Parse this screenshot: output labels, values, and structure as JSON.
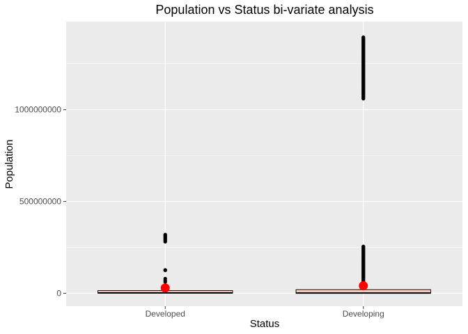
{
  "chart_data": {
    "type": "boxplot",
    "title": "Population vs Status bi-variate analysis",
    "xlabel": "Status",
    "ylabel": "Population",
    "categories": [
      "Developed",
      "Developing"
    ],
    "y_ticks": [
      {
        "value": 0,
        "label": "0"
      },
      {
        "value": 500000000,
        "label": "500000000"
      },
      {
        "value": 1000000000,
        "label": "1000000000"
      }
    ],
    "ylim": [
      -70000000,
      1480000000
    ],
    "boxes": [
      {
        "category": "Developed",
        "q1": 600000,
        "median": 2500000,
        "q3": 15000000,
        "min": 0,
        "max": 35000000,
        "mean": 29000000,
        "outliers": [
          42000000,
          62000000,
          70000000,
          80000000,
          125000000,
          126000000,
          127000000,
          281000000,
          285000000,
          290000000,
          295000000,
          300000000,
          305000000,
          310000000,
          315000000,
          320000000
        ]
      },
      {
        "category": "Developing",
        "q1": 200000,
        "median": 1400000,
        "q3": 20000000,
        "min": 0,
        "max": 48000000,
        "mean": 41000000
      }
    ],
    "outlier_ranges": [
      {
        "category": "Developing",
        "from": 50000000,
        "to": 255000000
      },
      {
        "category": "Developing",
        "from": 1060000000,
        "to": 1395000000
      }
    ],
    "colors": {
      "panel": "#ebebeb",
      "grid": "#ffffff",
      "box_fill": "#f8c9b9",
      "box_stroke": "#000000",
      "mean_point": "#ff0000",
      "outlier": "#000000"
    },
    "grid": true,
    "legend": "none"
  }
}
